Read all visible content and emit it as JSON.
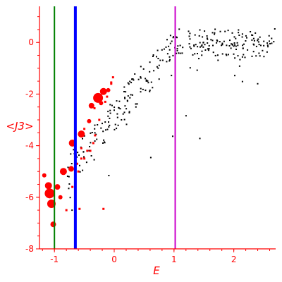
{
  "chart_data": {
    "type": "scatter",
    "title": "",
    "xlabel": "E",
    "ylabel": "<J3>",
    "xlim": [
      -1.25,
      2.7
    ],
    "ylim": [
      -8,
      1.4
    ],
    "x_ticks": [
      -1,
      0,
      1,
      2
    ],
    "y_ticks": [
      0,
      -2,
      -4,
      -6,
      -8
    ],
    "grid": false,
    "legend": "none",
    "colors": {
      "axis": "#ff0000",
      "small_points": "#000000",
      "large_points": "#ff0000",
      "line_green": "#008000",
      "line_blue": "#0000ff",
      "line_magenta": "#cc00cc"
    },
    "vertical_lines": [
      {
        "x": -1.0,
        "color": "#008000",
        "weight": "thin"
      },
      {
        "x": -0.65,
        "color": "#0000ff",
        "weight": "thick"
      },
      {
        "x": 1.02,
        "color": "#cc00cc",
        "weight": "thin"
      }
    ],
    "large_points": [
      [
        -1.17,
        -5.15,
        3
      ],
      [
        -1.1,
        -5.55,
        5
      ],
      [
        -1.08,
        -5.85,
        7
      ],
      [
        -1.05,
        -6.25,
        6
      ],
      [
        -1.02,
        -7.05,
        4
      ],
      [
        -0.95,
        -5.6,
        4
      ],
      [
        -0.9,
        -6.0,
        3
      ],
      [
        -0.85,
        -5.0,
        5
      ],
      [
        -0.8,
        -6.5,
        2
      ],
      [
        -0.72,
        -4.9,
        4
      ],
      [
        -0.7,
        -5.6,
        2
      ],
      [
        -0.7,
        -3.9,
        5
      ],
      [
        -0.62,
        -4.7,
        2
      ],
      [
        -0.55,
        -3.55,
        5
      ],
      [
        -0.5,
        -3.35,
        2
      ],
      [
        -0.55,
        -4.1,
        2
      ],
      [
        -0.5,
        -4.5,
        2
      ],
      [
        -0.45,
        -4.2,
        2
      ],
      [
        -0.42,
        -3.05,
        3
      ],
      [
        -0.38,
        -2.45,
        4
      ],
      [
        -0.33,
        -2.55,
        2
      ],
      [
        -0.27,
        -2.15,
        7
      ],
      [
        -0.25,
        -3.0,
        2
      ],
      [
        -0.22,
        -2.35,
        3
      ],
      [
        -0.18,
        -1.9,
        5
      ],
      [
        -0.1,
        -1.85,
        3
      ],
      [
        -0.12,
        -2.1,
        2
      ],
      [
        -0.05,
        -1.55,
        2
      ],
      [
        -0.02,
        -1.35,
        2
      ],
      [
        -0.15,
        -2.3,
        2
      ],
      [
        -0.4,
        -4.2,
        2
      ],
      [
        -0.35,
        -3.9,
        2
      ],
      [
        -0.6,
        -5.0,
        2
      ],
      [
        -0.58,
        -6.45,
        2
      ],
      [
        -0.18,
        -6.45,
        2
      ],
      [
        -0.32,
        -3.6,
        2
      ],
      [
        -0.05,
        -1.6,
        2
      ],
      [
        -0.55,
        -4.5,
        2
      ]
    ],
    "small_points_generated": {
      "count": 320,
      "x_range": [
        -0.8,
        2.7
      ],
      "trend": "rises from about -5 near x=-0.8 to about 0 above x=1, with more scatter at lower values",
      "color": "#000000"
    }
  }
}
